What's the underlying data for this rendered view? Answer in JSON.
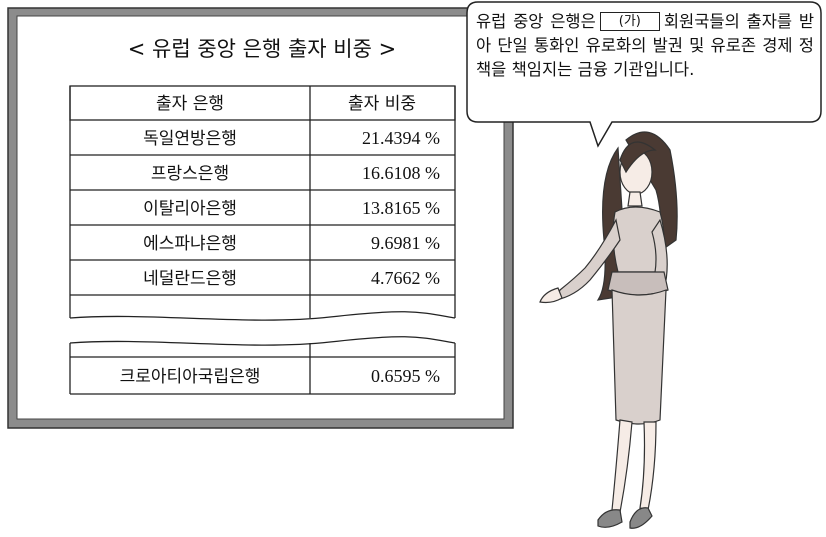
{
  "board": {
    "title": "< 유럽 중앙 은행 출자 비중 >",
    "table": {
      "header": [
        "출자 은행",
        "출자 비중"
      ],
      "rows": [
        [
          "독일연방은행",
          "21.4394 %"
        ],
        [
          "프랑스은행",
          "16.6108 %"
        ],
        [
          "이탈리아은행",
          "13.8165 %"
        ],
        [
          "에스파냐은행",
          "9.6981 %"
        ],
        [
          "네덜란드은행",
          "4.7662 %"
        ]
      ],
      "last_row": [
        "크로아티아국립은행",
        "0.6595 %"
      ]
    }
  },
  "speech": {
    "before": "유럽 중앙 은행은",
    "blank": "(가)",
    "after": "회원국들의 출자를 받아 단일 통화인 유로화의 발권 및 유로존 경제 정책을 책임지는 금융 기관입니다."
  }
}
